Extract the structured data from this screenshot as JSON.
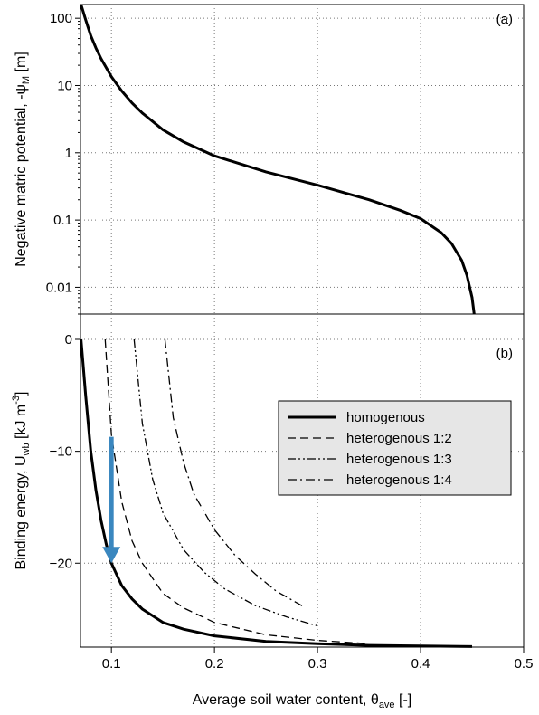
{
  "chart_data": [
    {
      "type": "line",
      "panel_label": "(a)",
      "ylabel_main": "Negative matric potential, -ψ",
      "ylabel_sub": "M",
      "ylabel_unit": "  [m]",
      "yscale": "log",
      "ylim": [
        0.004,
        160
      ],
      "xlim": [
        0.07,
        0.5
      ],
      "yticks": [
        "0.01",
        "0.1",
        "1",
        "10",
        "100"
      ],
      "ytick_values": [
        0.01,
        0.1,
        1,
        10,
        100
      ],
      "grid": true,
      "series": [
        {
          "x": [
            0.0705,
            0.075,
            0.08,
            0.085,
            0.09,
            0.1,
            0.11,
            0.12,
            0.13,
            0.15,
            0.17,
            0.2,
            0.25,
            0.3,
            0.35,
            0.38,
            0.4,
            0.42,
            0.43,
            0.44,
            0.445,
            0.45,
            0.452
          ],
          "y": [
            160,
            95,
            55,
            36,
            25,
            13.5,
            8.3,
            5.5,
            3.9,
            2.2,
            1.45,
            0.9,
            0.52,
            0.33,
            0.2,
            0.14,
            0.105,
            0.065,
            0.045,
            0.025,
            0.015,
            0.007,
            0.004
          ]
        }
      ]
    },
    {
      "type": "line",
      "panel_label": "(b)",
      "ylabel_main": "Binding energy, U",
      "ylabel_sub": "wb",
      "ylabel_unit": " [kJ m",
      "ylabel_sup": "-3",
      "ylabel_end": "]",
      "xlabel_main": "Average soil water content, θ",
      "xlabel_sub": "ave",
      "xlabel_unit": " [-]",
      "xlim": [
        0.07,
        0.5
      ],
      "ylim": [
        -27.5,
        0
      ],
      "xticks": [
        "0.1",
        "0.2",
        "0.3",
        "0.4",
        "0.5"
      ],
      "xtick_values": [
        0.1,
        0.2,
        0.3,
        0.4,
        0.5
      ],
      "yticks": [
        "−20",
        "−10",
        "0"
      ],
      "ytick_values": [
        -20,
        -10,
        0
      ],
      "grid": true,
      "legend_position": "right",
      "series": [
        {
          "name": "homogenous",
          "style": "solid",
          "x": [
            0.0705,
            0.075,
            0.08,
            0.085,
            0.09,
            0.095,
            0.1,
            0.11,
            0.12,
            0.13,
            0.15,
            0.17,
            0.2,
            0.25,
            0.3,
            0.35,
            0.4,
            0.45
          ],
          "y": [
            0,
            -5,
            -10,
            -13.5,
            -16.2,
            -18.3,
            -20.0,
            -22.0,
            -23.2,
            -24.1,
            -25.3,
            -25.9,
            -26.5,
            -27.0,
            -27.2,
            -27.35,
            -27.4,
            -27.45
          ]
        },
        {
          "name": "heterogenous 1:2",
          "style": "dash",
          "x": [
            0.094,
            0.1,
            0.11,
            0.12,
            0.13,
            0.15,
            0.17,
            0.2,
            0.25,
            0.3,
            0.35
          ],
          "y": [
            0,
            -8.5,
            -14.5,
            -18.0,
            -20.0,
            -22.7,
            -24.0,
            -25.3,
            -26.4,
            -26.9,
            -27.2
          ]
        },
        {
          "name": "heterogenous 1:3",
          "style": "dashdotdot",
          "x": [
            0.122,
            0.13,
            0.14,
            0.15,
            0.17,
            0.19,
            0.21,
            0.24,
            0.27,
            0.3
          ],
          "y": [
            0,
            -7.5,
            -12.5,
            -15.5,
            -18.8,
            -20.8,
            -22.3,
            -23.8,
            -24.8,
            -25.6
          ]
        },
        {
          "name": "heterogenous 1:4",
          "style": "dashdot",
          "x": [
            0.152,
            0.16,
            0.17,
            0.18,
            0.2,
            0.22,
            0.24,
            0.26,
            0.285
          ],
          "y": [
            0,
            -7.0,
            -11.0,
            -13.8,
            -17.0,
            -19.3,
            -21.0,
            -22.5,
            -23.8
          ]
        }
      ],
      "annotation_arrow": {
        "x": 0.1,
        "y_from": -8.7,
        "y_to": -20.0,
        "color": "#3a87bf"
      }
    }
  ]
}
